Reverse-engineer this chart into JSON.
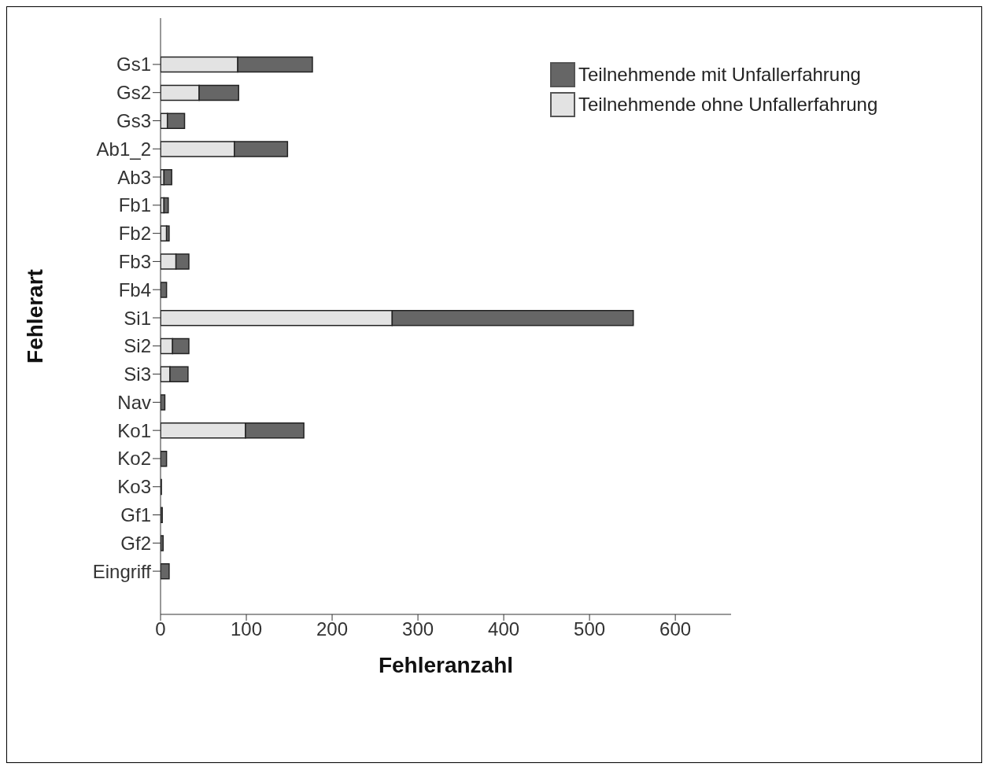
{
  "chart_data": {
    "type": "bar",
    "orientation": "horizontal",
    "stacked": true,
    "xlabel": "Fehleranzahl",
    "ylabel": "Fehlerart",
    "categories": [
      "Gs1",
      "Gs2",
      "Gs3",
      "Ab1_2",
      "Ab3",
      "Fb1",
      "Fb2",
      "Fb3",
      "Fb4",
      "Si1",
      "Si2",
      "Si3",
      "Nav",
      "Ko1",
      "Ko2",
      "Ko3",
      "Gf1",
      "Gf2",
      "Eingriff"
    ],
    "series": [
      {
        "name": "Teilnehmende ohne Unfallerfahrung",
        "color": "#e3e3e3",
        "values": [
          90,
          45,
          8,
          86,
          4,
          4,
          7,
          18,
          null,
          270,
          14,
          11,
          0,
          99,
          null,
          0,
          0,
          0,
          null
        ]
      },
      {
        "name": "Teilnehmende mit Unfallerfahrung",
        "color": "#666666",
        "values": [
          87,
          46,
          20,
          62,
          9,
          5,
          3,
          15,
          7,
          281,
          19,
          21,
          5,
          68,
          7,
          1,
          2,
          3,
          10
        ]
      }
    ],
    "xlim": [
      0,
      665
    ],
    "xticks": [
      0,
      100,
      200,
      300,
      400,
      500,
      600
    ],
    "grid": false,
    "legend": "top right"
  }
}
